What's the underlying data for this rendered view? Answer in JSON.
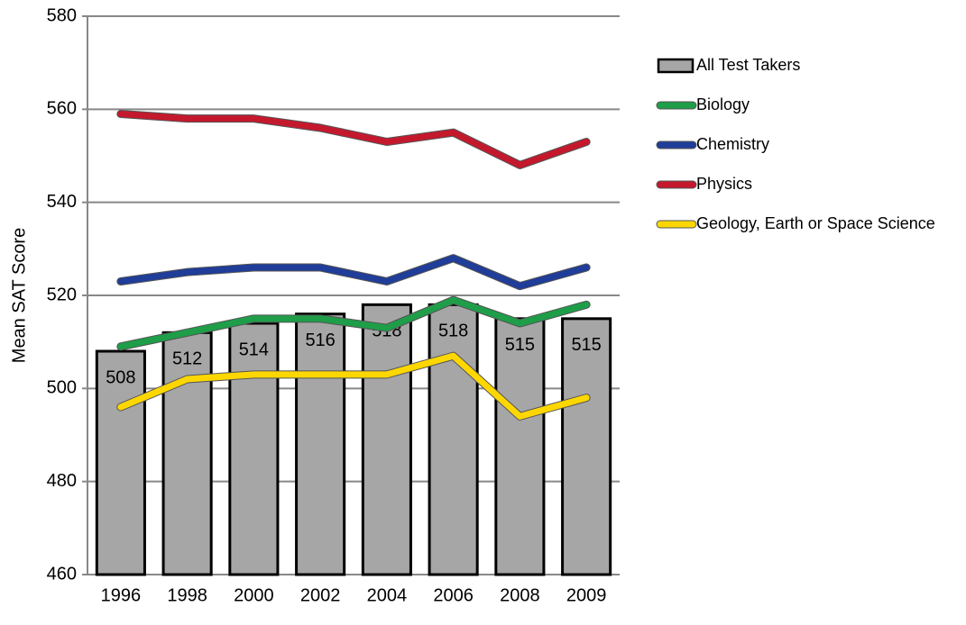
{
  "chart_data": {
    "type": "combo",
    "y_label": "Mean SAT Score",
    "categories": [
      "1996",
      "1998",
      "2000",
      "2002",
      "2004",
      "2006",
      "2008",
      "2009"
    ],
    "series": [
      {
        "name": "All Test Takers",
        "type": "bar",
        "color": "#a6a6a6",
        "values": [
          508,
          512,
          514,
          516,
          518,
          518,
          515,
          515
        ]
      },
      {
        "name": "Biology",
        "type": "line",
        "color": "#1e9e48",
        "values": [
          509,
          512,
          515,
          515,
          513,
          519,
          514,
          518
        ]
      },
      {
        "name": "Chemistry",
        "type": "line",
        "color": "#1f3d99",
        "values": [
          523,
          525,
          526,
          526,
          523,
          528,
          522,
          526
        ]
      },
      {
        "name": "Physics",
        "type": "line",
        "color": "#c4192d",
        "values": [
          559,
          558,
          558,
          556,
          553,
          555,
          548,
          553
        ]
      },
      {
        "name": "Geology, Earth or Space Science",
        "type": "line",
        "color": "#ffd700",
        "values": [
          496,
          502,
          503,
          503,
          503,
          507,
          494,
          498
        ]
      }
    ],
    "ylim": [
      460,
      580
    ],
    "yticks": [
      460,
      480,
      500,
      520,
      540,
      560,
      580
    ],
    "grid": true,
    "legend": "right"
  }
}
